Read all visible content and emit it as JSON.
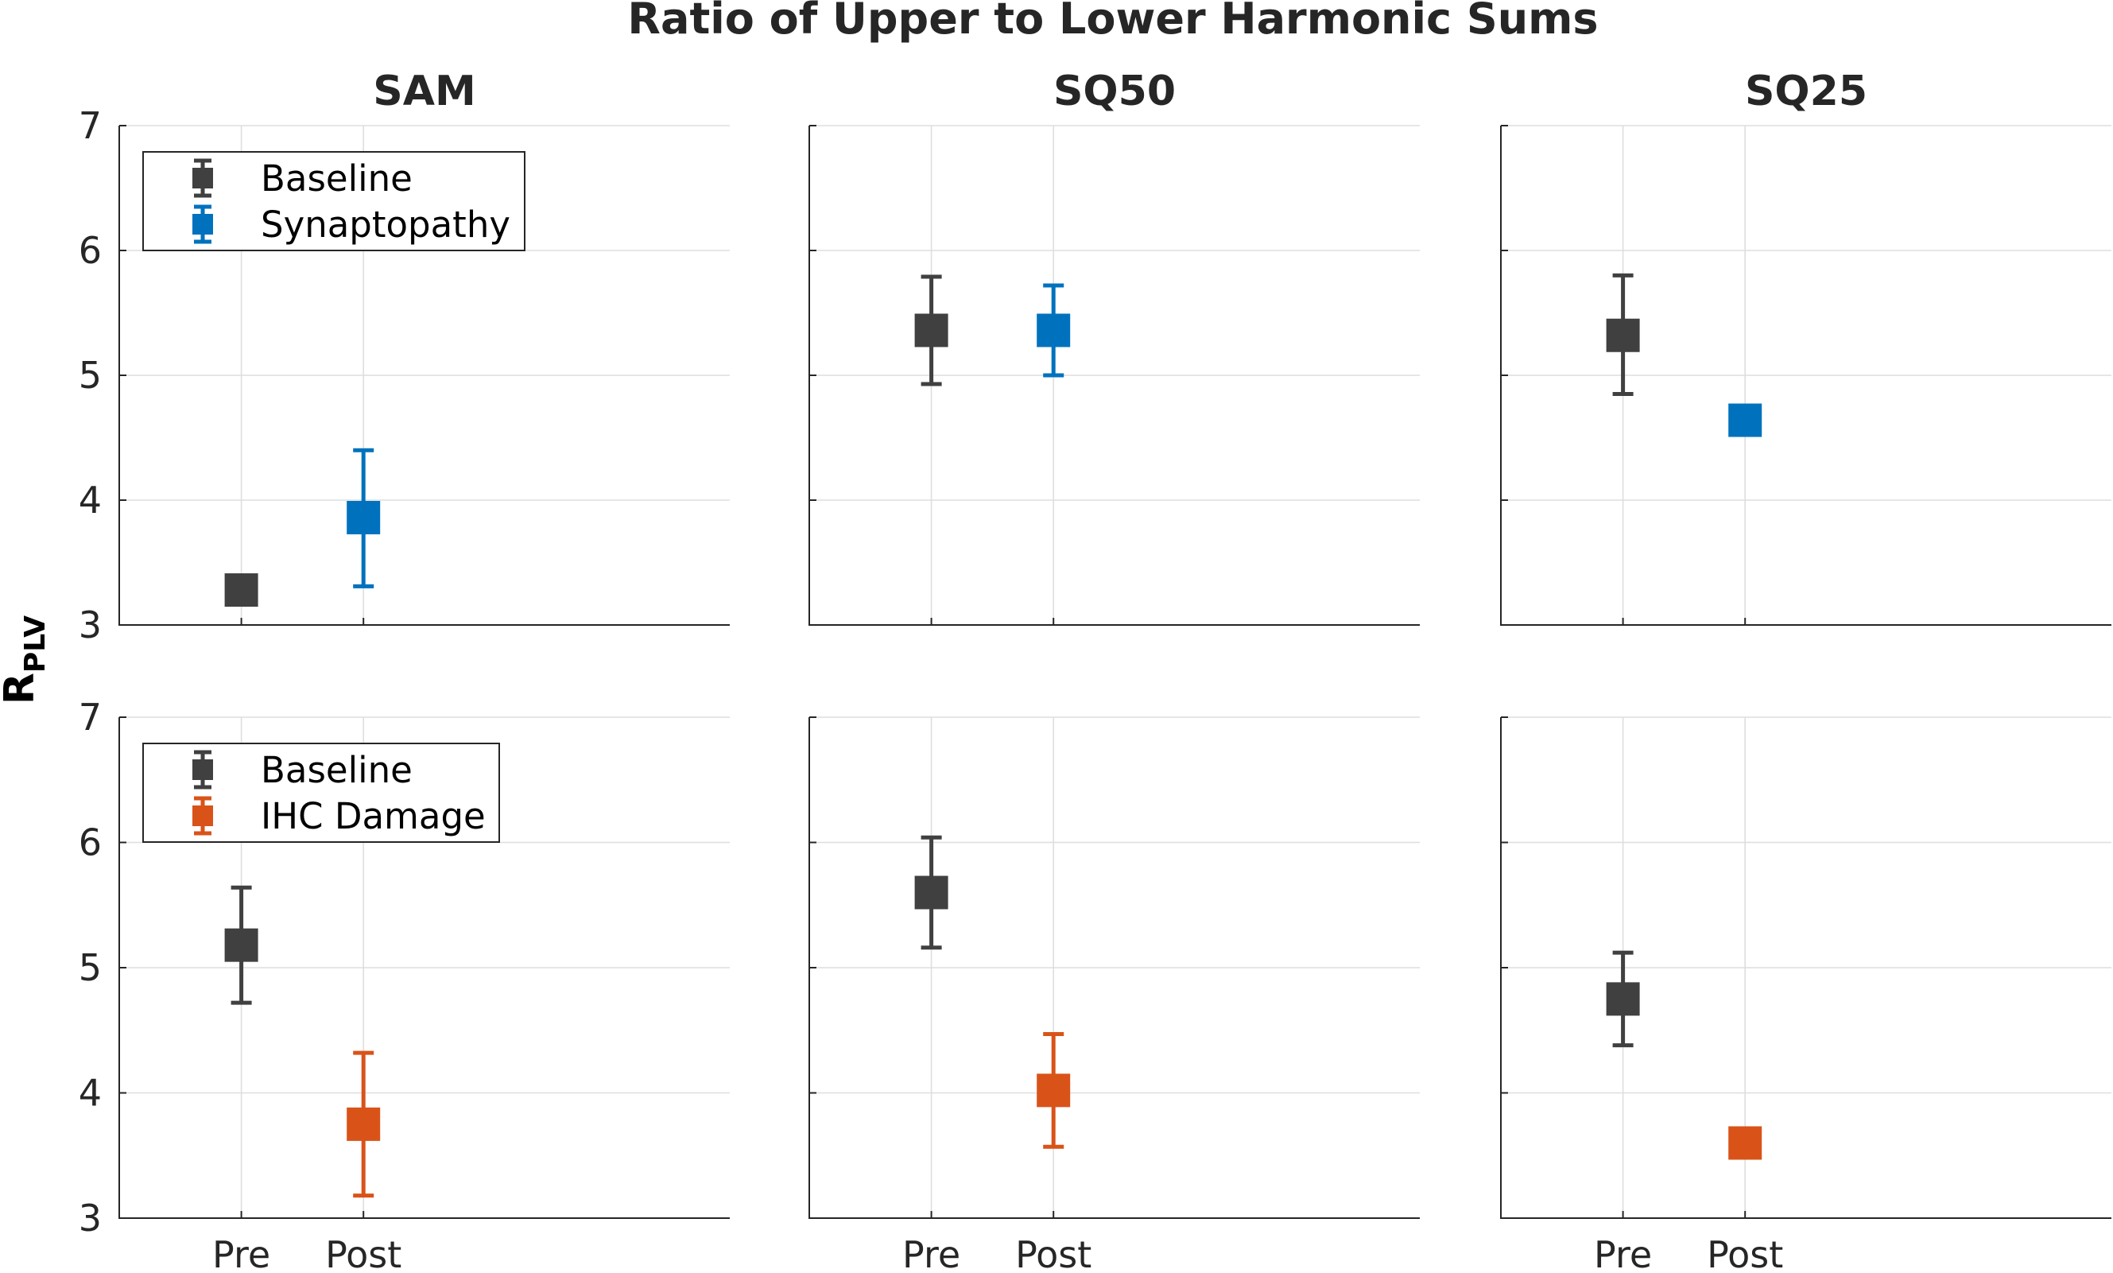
{
  "figure_title": "Ratio of Upper to Lower Harmonic Sums",
  "ylabel": {
    "main": "R",
    "subscript": "PLV"
  },
  "colors": {
    "baseline": "#404040",
    "synaptopathy": "#0072bd",
    "ihc_damage": "#d95319",
    "axis": "#262626",
    "grid": "#dedede"
  },
  "chart_data": [
    {
      "type": "errorbar",
      "title": "SAM",
      "categories": [
        "Pre",
        "Post"
      ],
      "ylim": [
        3,
        7
      ],
      "yticks": [
        3,
        4,
        5,
        6,
        7
      ],
      "grid": true,
      "legend": {
        "location": "top-left",
        "entries": [
          "Baseline",
          "Synaptopathy"
        ]
      },
      "series": [
        {
          "name": "Baseline",
          "color": "#404040",
          "x": 1,
          "y": 3.28,
          "lower": 3.28,
          "upper": 3.28
        },
        {
          "name": "Synaptopathy",
          "color": "#0072bd",
          "x": 2,
          "y": 3.86,
          "lower": 3.31,
          "upper": 4.4
        }
      ]
    },
    {
      "type": "errorbar",
      "title": "SQ50",
      "categories": [
        "Pre",
        "Post"
      ],
      "ylim": [
        3,
        7
      ],
      "yticks": [
        3,
        4,
        5,
        6,
        7
      ],
      "grid": true,
      "series": [
        {
          "name": "Baseline",
          "color": "#404040",
          "x": 1,
          "y": 5.36,
          "lower": 4.93,
          "upper": 5.79
        },
        {
          "name": "Synaptopathy",
          "color": "#0072bd",
          "x": 2,
          "y": 5.36,
          "lower": 5.0,
          "upper": 5.72
        }
      ]
    },
    {
      "type": "errorbar",
      "title": "SQ25",
      "categories": [
        "Pre",
        "Post"
      ],
      "ylim": [
        3,
        7
      ],
      "yticks": [
        3,
        4,
        5,
        6,
        7
      ],
      "grid": true,
      "series": [
        {
          "name": "Baseline",
          "color": "#404040",
          "x": 1,
          "y": 5.32,
          "lower": 4.85,
          "upper": 5.8
        },
        {
          "name": "Synaptopathy",
          "color": "#0072bd",
          "x": 2,
          "y": 4.64,
          "lower": 4.64,
          "upper": 4.64
        }
      ]
    },
    {
      "type": "errorbar",
      "title": "",
      "categories": [
        "Pre",
        "Post"
      ],
      "ylim": [
        3,
        7
      ],
      "yticks": [
        3,
        4,
        5,
        6,
        7
      ],
      "grid": true,
      "legend": {
        "location": "top-left",
        "entries": [
          "Baseline",
          "IHC Damage"
        ]
      },
      "series": [
        {
          "name": "Baseline",
          "color": "#404040",
          "x": 1,
          "y": 5.18,
          "lower": 4.72,
          "upper": 5.64
        },
        {
          "name": "IHC Damage",
          "color": "#d95319",
          "x": 2,
          "y": 3.75,
          "lower": 3.18,
          "upper": 4.32
        }
      ]
    },
    {
      "type": "errorbar",
      "title": "",
      "categories": [
        "Pre",
        "Post"
      ],
      "ylim": [
        3,
        7
      ],
      "yticks": [
        3,
        4,
        5,
        6,
        7
      ],
      "grid": true,
      "series": [
        {
          "name": "Baseline",
          "color": "#404040",
          "x": 1,
          "y": 5.6,
          "lower": 5.16,
          "upper": 6.04
        },
        {
          "name": "IHC Damage",
          "color": "#d95319",
          "x": 2,
          "y": 4.02,
          "lower": 3.57,
          "upper": 4.47
        }
      ]
    },
    {
      "type": "errorbar",
      "title": "",
      "categories": [
        "Pre",
        "Post"
      ],
      "ylim": [
        3,
        7
      ],
      "yticks": [
        3,
        4,
        5,
        6,
        7
      ],
      "grid": true,
      "series": [
        {
          "name": "Baseline",
          "color": "#404040",
          "x": 1,
          "y": 4.75,
          "lower": 4.38,
          "upper": 5.12
        },
        {
          "name": "IHC Damage",
          "color": "#d95319",
          "x": 2,
          "y": 3.6,
          "lower": 3.5,
          "upper": 3.7
        }
      ]
    }
  ]
}
